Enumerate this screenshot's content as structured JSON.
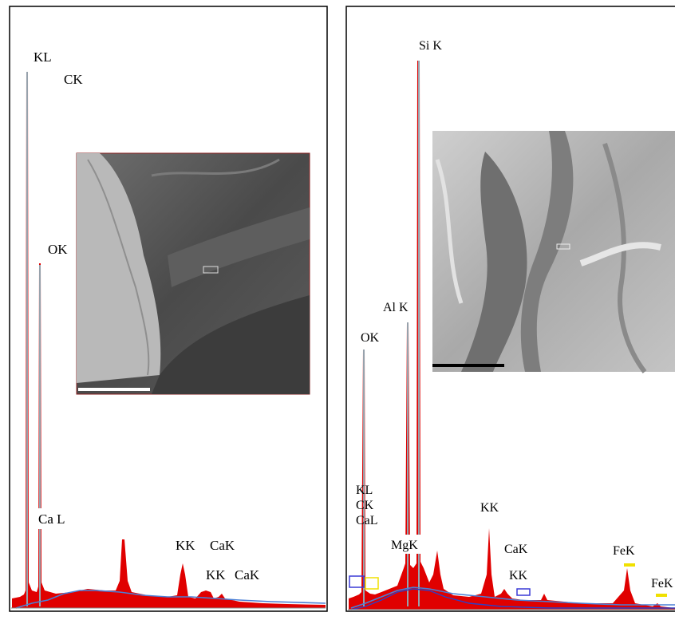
{
  "chart_data": [
    {
      "type": "area",
      "title": "",
      "xlabel": "",
      "ylabel": "",
      "grid": false,
      "colors": {
        "spectrum": "#e00000",
        "peak_marker": "#7fd7e6",
        "background_line": "#4a7fd6",
        "border": "#000000"
      },
      "labels": [
        {
          "text": "KL"
        },
        {
          "text": "CK"
        },
        {
          "text": "OK"
        },
        {
          "text": "Ca L"
        },
        {
          "text": "KK"
        },
        {
          "text": "CaK"
        },
        {
          "text": "KK"
        },
        {
          "text": "CaK"
        }
      ],
      "inset": {
        "kind": "SEM micrograph",
        "scale_bar": true
      }
    },
    {
      "type": "area",
      "title": "",
      "xlabel": "",
      "ylabel": "",
      "grid": false,
      "colors": {
        "spectrum": "#e00000",
        "peak_marker": "#7fd7e6",
        "background_line": "#4a7fd6",
        "border": "#000000",
        "marker_box": "#3a3ad6",
        "marker_box_yellow": "#f0e000"
      },
      "labels": [
        {
          "text": "Si K"
        },
        {
          "text": "Al K"
        },
        {
          "text": "OK"
        },
        {
          "text": "KL"
        },
        {
          "text": "CK"
        },
        {
          "text": "CaL"
        },
        {
          "text": "MgK"
        },
        {
          "text": "KK"
        },
        {
          "text": "CaK"
        },
        {
          "text": "KK"
        },
        {
          "text": "FeK"
        },
        {
          "text": "FeK"
        }
      ],
      "inset": {
        "kind": "SEM micrograph",
        "scale_bar": true
      }
    }
  ]
}
